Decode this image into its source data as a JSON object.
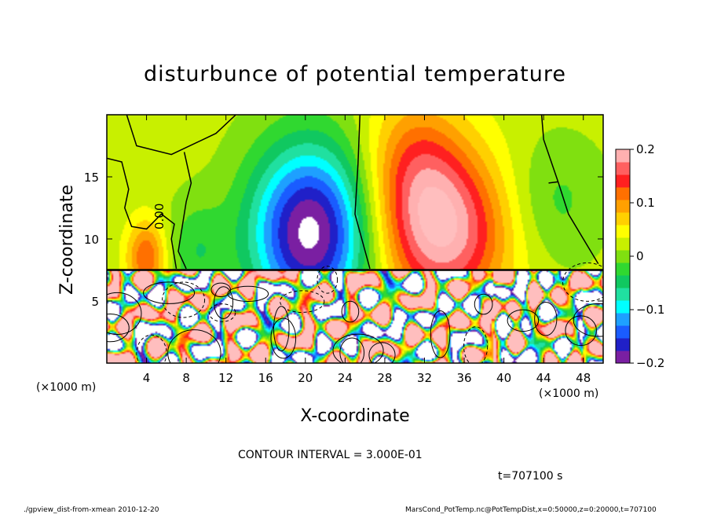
{
  "chart_data": {
    "type": "heatmap",
    "title": "disturbunce of potential temperature",
    "xlabel": "X-coordinate",
    "ylabel": "Z-coordinate",
    "x_unit": "(×1000 m)",
    "y_unit": "(×1000 m)",
    "xlim": [
      0,
      50
    ],
    "ylim": [
      0,
      20
    ],
    "x_ticks": [
      "4",
      "8",
      "12",
      "16",
      "20",
      "24",
      "28",
      "32",
      "36",
      "40",
      "44",
      "48"
    ],
    "x_tick_values": [
      4,
      8,
      12,
      16,
      20,
      24,
      28,
      32,
      36,
      40,
      44,
      48
    ],
    "y_ticks": [
      "5",
      "10",
      "15"
    ],
    "y_tick_values": [
      5,
      10,
      15
    ],
    "contour_label": "0.00",
    "colorbar": {
      "range": [
        -0.2,
        0.2
      ],
      "tick_labels": [
        "0.2",
        "0.1",
        "0",
        "−0.1",
        "−0.2"
      ],
      "tick_values": [
        0.2,
        0.1,
        0,
        -0.1,
        -0.2
      ],
      "colors": [
        "#7a1fa2",
        "#2020c8",
        "#1a5cff",
        "#1ea0ff",
        "#00ffff",
        "#20e0a0",
        "#10c860",
        "#30d830",
        "#80e010",
        "#c8f000",
        "#ffff00",
        "#ffd000",
        "#ffa000",
        "#ff7000",
        "#ff2020",
        "#ff6060",
        "#ffb0b0"
      ]
    },
    "field": {
      "description": "",
      "x_centers": [
        2,
        5,
        10,
        20,
        22,
        33,
        36,
        45
      ],
      "anomalies": [
        {
          "x": 4,
          "z": 9,
          "value": 0.12
        },
        {
          "x": 20,
          "z": 10,
          "value": -0.22
        },
        {
          "x": 34,
          "z": 10,
          "value": 0.17
        },
        {
          "x": 30,
          "z": 17,
          "value": 0.07
        }
      ]
    }
  },
  "annotations": {
    "contour_interval": "CONTOUR INTERVAL = 3.000E-01",
    "time": "t=707100 s",
    "footer_left": "./gpview_dist-from-xmean   2010-12-20",
    "footer_right": "MarsCond_PotTemp.nc@PotTempDist,x=0:50000,z=0:20000,t=707100"
  }
}
